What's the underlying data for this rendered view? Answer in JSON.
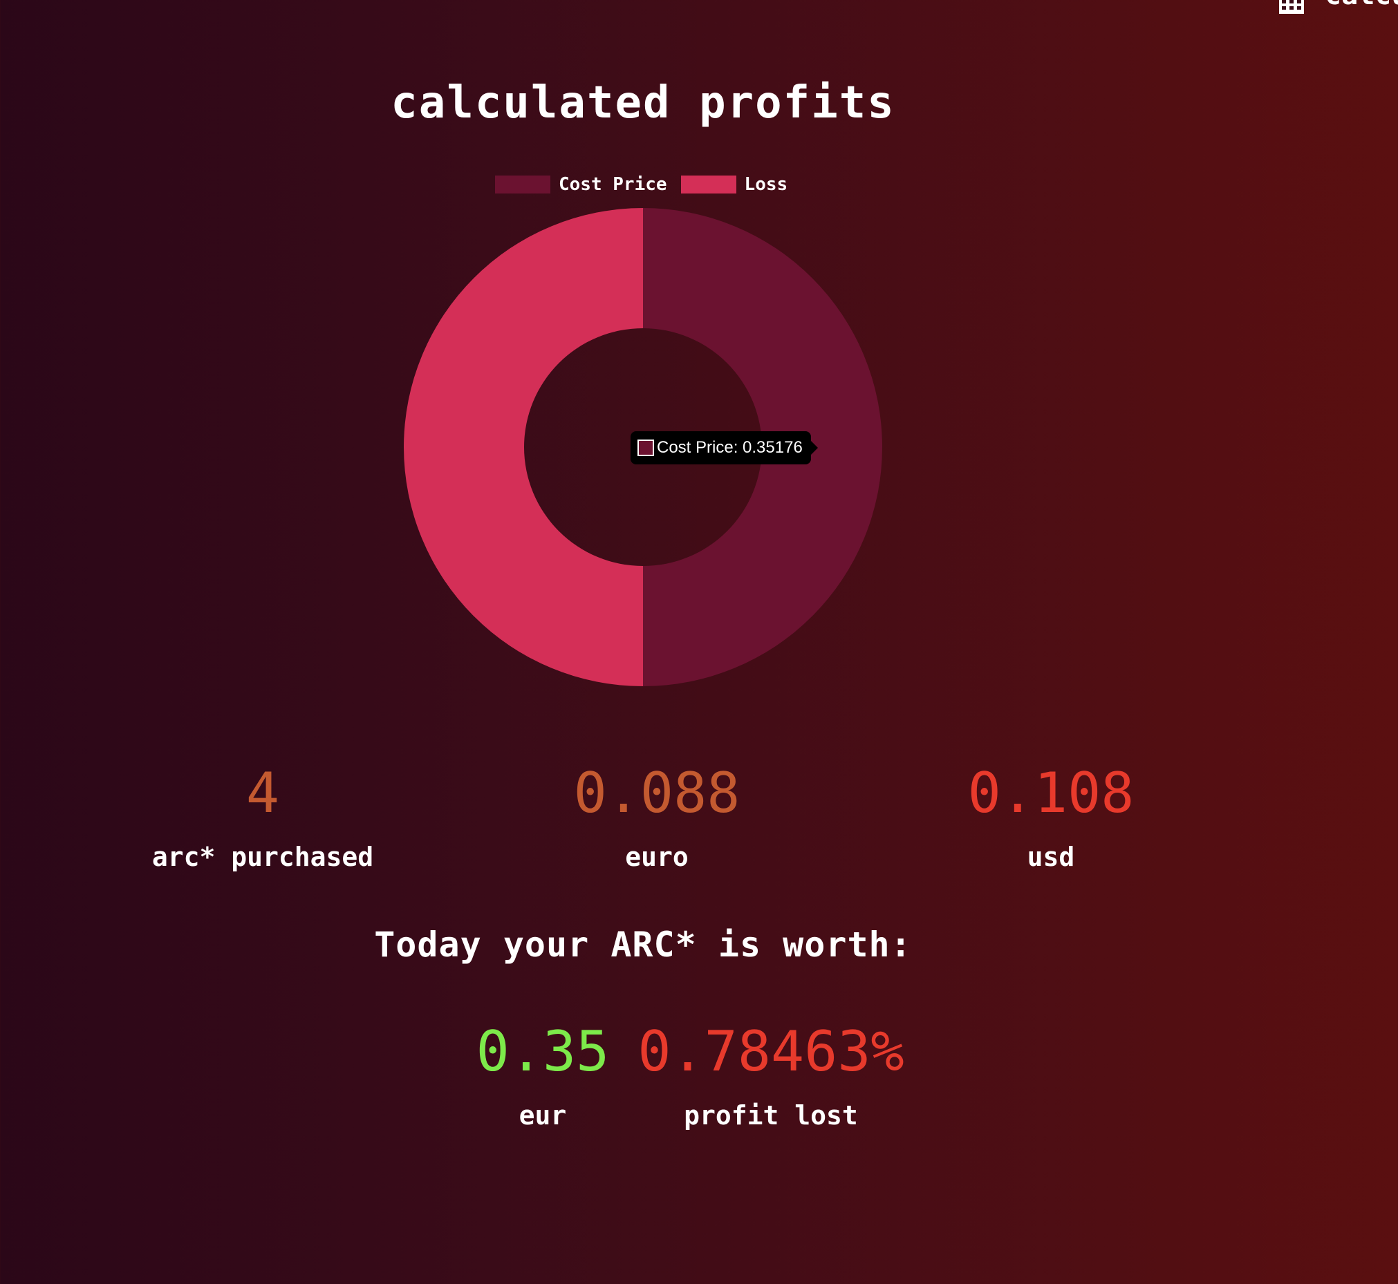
{
  "header": {
    "corner_text": "calcul"
  },
  "title": "calculated profits",
  "colors": {
    "cost_price": "#6b1230",
    "loss": "#d42f57",
    "value_orange": "#c45a30",
    "value_red": "#e83a2c",
    "value_green": "#7dea4a"
  },
  "chart_data": {
    "type": "pie",
    "donut": true,
    "categories": [
      "Cost Price",
      "Loss"
    ],
    "values": [
      0.35176,
      0.35176
    ],
    "legend_position": "top",
    "tooltip": "Cost Price: 0.35176"
  },
  "stats": [
    {
      "value": "4",
      "label": "arc* purchased"
    },
    {
      "value": "0.088",
      "label": "euro"
    },
    {
      "value": "0.108",
      "label": "usd"
    }
  ],
  "worth": {
    "title": "Today your ARC* is worth:",
    "items": [
      {
        "value": "0.35",
        "label": "eur"
      },
      {
        "value": "0.78463%",
        "label": "profit lost"
      }
    ]
  }
}
